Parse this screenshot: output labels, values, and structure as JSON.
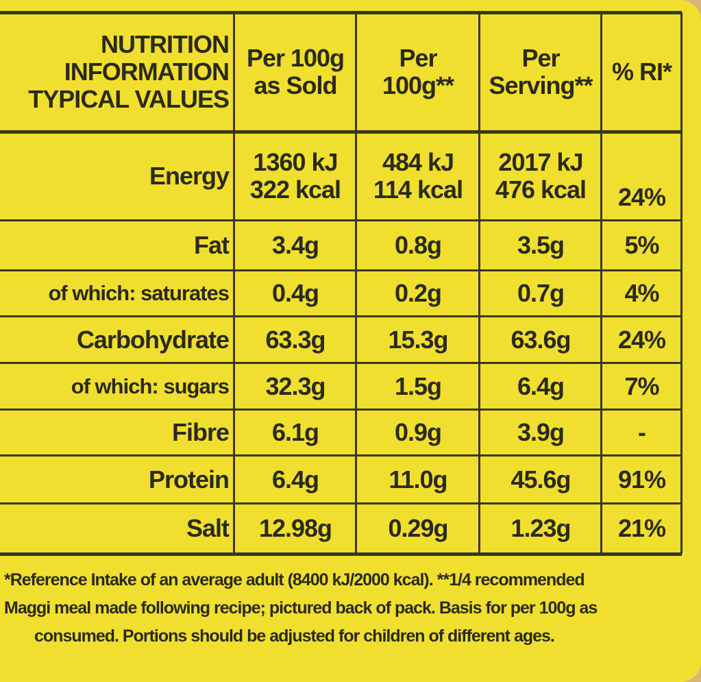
{
  "header": {
    "title": [
      "NUTRITION",
      "INFORMATION",
      "TYPICAL VALUES"
    ],
    "columns": [
      [
        "Per 100g",
        "as Sold"
      ],
      [
        "Per",
        "100g**"
      ],
      [
        "Per",
        "Serving**"
      ],
      [
        "% RI*"
      ]
    ]
  },
  "rows": [
    {
      "label": "Energy",
      "cells": [
        [
          "1360 kJ",
          "322 kcal"
        ],
        [
          "484 kJ",
          "114 kcal"
        ],
        [
          "2017 kJ",
          "476 kcal"
        ],
        [
          "24%"
        ]
      ]
    },
    {
      "label": "Fat",
      "cells": [
        [
          "3.4g"
        ],
        [
          "0.8g"
        ],
        [
          "3.5g"
        ],
        [
          "5%"
        ]
      ]
    },
    {
      "label": "of which: saturates",
      "cells": [
        [
          "0.4g"
        ],
        [
          "0.2g"
        ],
        [
          "0.7g"
        ],
        [
          "4%"
        ]
      ]
    },
    {
      "label": "Carbohydrate",
      "cells": [
        [
          "63.3g"
        ],
        [
          "15.3g"
        ],
        [
          "63.6g"
        ],
        [
          "24%"
        ]
      ]
    },
    {
      "label": "of which: sugars",
      "cells": [
        [
          "32.3g"
        ],
        [
          "1.5g"
        ],
        [
          "6.4g"
        ],
        [
          "7%"
        ]
      ]
    },
    {
      "label": "Fibre",
      "cells": [
        [
          "6.1g"
        ],
        [
          "0.9g"
        ],
        [
          "3.9g"
        ],
        [
          "-"
        ]
      ]
    },
    {
      "label": "Protein",
      "cells": [
        [
          "6.4g"
        ],
        [
          "11.0g"
        ],
        [
          "45.6g"
        ],
        [
          "91%"
        ]
      ]
    },
    {
      "label": "Salt",
      "cells": [
        [
          "12.98g"
        ],
        [
          "0.29g"
        ],
        [
          "1.23g"
        ],
        [
          "21%"
        ]
      ]
    }
  ],
  "footnote": [
    "*Reference Intake of an average adult (8400 kJ/2000 kcal). **1/4 recommended",
    "Maggi meal made following recipe; pictured back of pack. Basis for per 100g as",
    "consumed. Portions should be adjusted for children of different ages."
  ]
}
